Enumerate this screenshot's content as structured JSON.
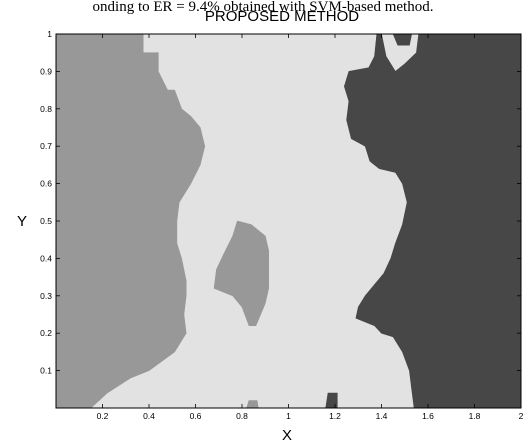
{
  "caption": "onding to ER = 9.4% obtained with SVM-based method.",
  "chart_data": {
    "type": "heatmap",
    "title": "PROPOSED METHOD",
    "xlabel": "X",
    "ylabel": "Y",
    "xlim": [
      0,
      2
    ],
    "ylim": [
      0,
      1
    ],
    "xticks": [
      "0.2",
      "0.4",
      "0.6",
      "0.8",
      "1",
      "1.2",
      "1.4",
      "1.6",
      "1.8",
      "2"
    ],
    "yticks": [
      "0.1",
      "0.2",
      "0.3",
      "0.4",
      "0.5",
      "0.6",
      "0.7",
      "0.8",
      "0.9",
      "1"
    ],
    "grid": false,
    "colors": {
      "background": "#e2e2e2",
      "class_a": "#989898",
      "class_b": "#474747",
      "frame": "#000000"
    },
    "regions": [
      {
        "class": "class_a",
        "polygon": [
          [
            0.0,
            1.0
          ],
          [
            0.375,
            1.0
          ],
          [
            0.375,
            0.95
          ],
          [
            0.44,
            0.95
          ],
          [
            0.44,
            0.9
          ],
          [
            0.48,
            0.85
          ],
          [
            0.51,
            0.85
          ],
          [
            0.54,
            0.8
          ],
          [
            0.58,
            0.78
          ],
          [
            0.62,
            0.75
          ],
          [
            0.64,
            0.7
          ],
          [
            0.62,
            0.65
          ],
          [
            0.58,
            0.6
          ],
          [
            0.53,
            0.55
          ],
          [
            0.52,
            0.5
          ],
          [
            0.52,
            0.44
          ],
          [
            0.54,
            0.4
          ],
          [
            0.56,
            0.34
          ],
          [
            0.56,
            0.3
          ],
          [
            0.55,
            0.25
          ],
          [
            0.56,
            0.2
          ],
          [
            0.51,
            0.15
          ],
          [
            0.4,
            0.1
          ],
          [
            0.32,
            0.08
          ],
          [
            0.22,
            0.04
          ],
          [
            0.15,
            0.0
          ],
          [
            0.0,
            0.0
          ]
        ]
      },
      {
        "class": "class_a",
        "polygon": [
          [
            0.68,
            0.32
          ],
          [
            0.76,
            0.3
          ],
          [
            0.8,
            0.27
          ],
          [
            0.83,
            0.22
          ],
          [
            0.86,
            0.22
          ],
          [
            0.9,
            0.28
          ],
          [
            0.915,
            0.32
          ],
          [
            0.915,
            0.42
          ],
          [
            0.9,
            0.46
          ],
          [
            0.84,
            0.49
          ],
          [
            0.78,
            0.5
          ],
          [
            0.76,
            0.46
          ],
          [
            0.72,
            0.41
          ],
          [
            0.69,
            0.37
          ]
        ]
      },
      {
        "class": "class_b",
        "polygon": [
          [
            1.45,
            1.0
          ],
          [
            1.53,
            1.0
          ],
          [
            1.52,
            0.97
          ],
          [
            1.47,
            0.97
          ]
        ]
      },
      {
        "class": "class_b",
        "polygon": [
          [
            1.19,
            1.0
          ],
          [
            1.38,
            1.0
          ],
          [
            1.37,
            0.94
          ],
          [
            1.345,
            0.91
          ],
          [
            1.26,
            0.9
          ],
          [
            1.24,
            0.86
          ],
          [
            1.26,
            0.82
          ],
          [
            1.25,
            0.77
          ],
          [
            1.27,
            0.72
          ],
          [
            1.33,
            0.7
          ],
          [
            1.35,
            0.66
          ],
          [
            1.39,
            0.64
          ],
          [
            1.46,
            0.63
          ],
          [
            1.49,
            0.6
          ],
          [
            1.51,
            0.55
          ],
          [
            1.49,
            0.49
          ],
          [
            1.46,
            0.44
          ],
          [
            1.44,
            0.4
          ],
          [
            1.41,
            0.36
          ],
          [
            1.37,
            0.33
          ],
          [
            1.33,
            0.3
          ],
          [
            1.3,
            0.27
          ],
          [
            1.29,
            0.24
          ],
          [
            1.33,
            0.23
          ],
          [
            1.37,
            0.22
          ],
          [
            1.4,
            0.2
          ],
          [
            1.45,
            0.19
          ],
          [
            1.49,
            0.15
          ],
          [
            1.52,
            0.1
          ],
          [
            1.53,
            0.05
          ],
          [
            1.54,
            0.0
          ],
          [
            1.75,
            0.0
          ],
          [
            1.75,
            1.0
          ],
          [
            1.56,
            1.0
          ],
          [
            1.55,
            0.95
          ],
          [
            1.5,
            0.92
          ],
          [
            1.46,
            0.9
          ],
          [
            1.42,
            0.94
          ],
          [
            1.4,
            1.0
          ]
        ]
      },
      {
        "class": "class_b",
        "polygon": [
          [
            1.75,
            0.0
          ],
          [
            2.0,
            0.0
          ],
          [
            2.0,
            1.0
          ],
          [
            1.75,
            1.0
          ]
        ]
      },
      {
        "class": "class_a",
        "polygon": [
          [
            0.82,
            0.0
          ],
          [
            0.87,
            0.0
          ],
          [
            0.865,
            0.02
          ],
          [
            0.83,
            0.02
          ]
        ]
      },
      {
        "class": "class_b",
        "polygon": [
          [
            1.16,
            0.0
          ],
          [
            1.21,
            0.0
          ],
          [
            1.21,
            0.04
          ],
          [
            1.17,
            0.04
          ]
        ]
      }
    ]
  }
}
